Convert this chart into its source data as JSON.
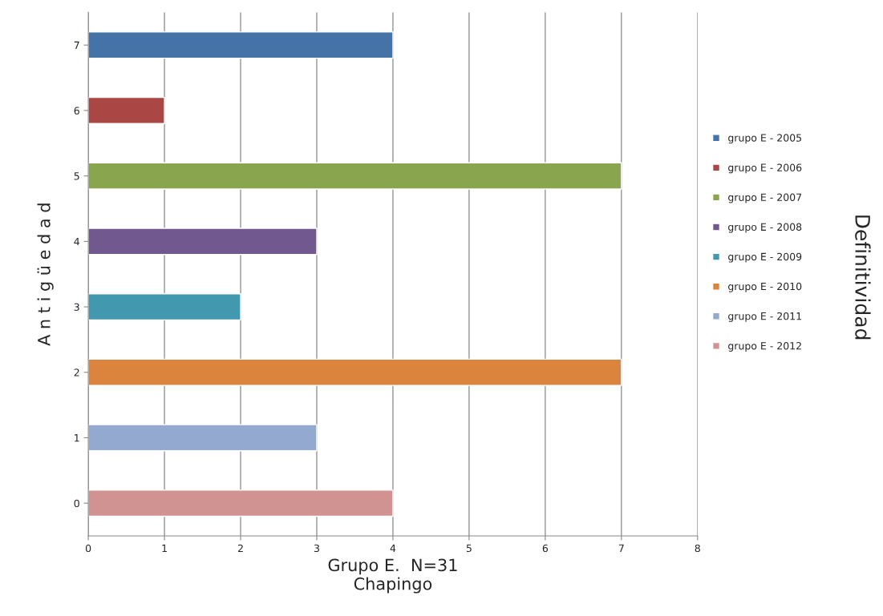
{
  "chart_data": {
    "type": "bar",
    "orientation": "horizontal",
    "categories": [
      "7",
      "6",
      "5",
      "4",
      "3",
      "2",
      "1",
      "0"
    ],
    "series": [
      {
        "name": "grupo E - 2005",
        "color": "#4572a7",
        "values": [
          4,
          null,
          null,
          null,
          null,
          null,
          null,
          null
        ]
      },
      {
        "name": "grupo E - 2006",
        "color": "#aa4643",
        "values": [
          null,
          1,
          null,
          null,
          null,
          null,
          null,
          null
        ]
      },
      {
        "name": "grupo E - 2007",
        "color": "#89a54e",
        "values": [
          null,
          null,
          7,
          null,
          null,
          null,
          null,
          null
        ]
      },
      {
        "name": "grupo E - 2008",
        "color": "#71588f",
        "values": [
          null,
          null,
          null,
          3,
          null,
          null,
          null,
          null
        ]
      },
      {
        "name": "grupo E - 2009",
        "color": "#4198af",
        "values": [
          null,
          null,
          null,
          null,
          2,
          null,
          null,
          null
        ]
      },
      {
        "name": "grupo E - 2010",
        "color": "#db843d",
        "values": [
          null,
          null,
          null,
          null,
          null,
          7,
          null,
          null
        ]
      },
      {
        "name": "grupo E - 2011",
        "color": "#93a9cf",
        "values": [
          null,
          null,
          null,
          null,
          null,
          null,
          3,
          null
        ]
      },
      {
        "name": "grupo E - 2012",
        "color": "#d19392",
        "values": [
          null,
          null,
          null,
          null,
          null,
          null,
          null,
          4
        ]
      }
    ],
    "xlim": [
      0,
      8
    ],
    "xticks": [
      0,
      1,
      2,
      3,
      4,
      5,
      6,
      7,
      8
    ],
    "grid": "x",
    "legend": "right",
    "xlabel": "Grupo E.  N=31\nChapingo",
    "ylabel": "A n t i g ü e d a d",
    "annotations": [
      "Definitividad"
    ]
  }
}
